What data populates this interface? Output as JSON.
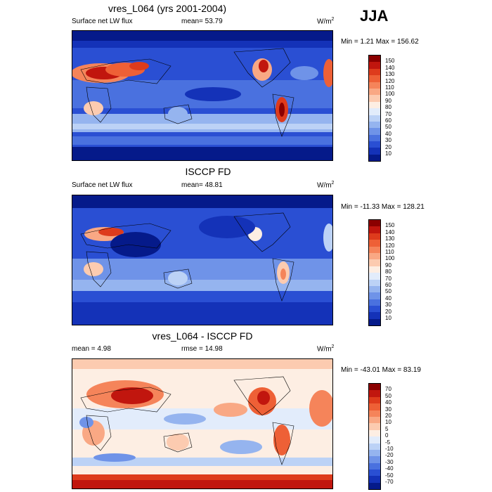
{
  "season": "JJA",
  "panels": [
    {
      "title": "vres_L064 (yrs 2001-2004)",
      "left_label": "Surface net LW flux",
      "mean_label": "mean=  53.79",
      "right_label_base": "W/m",
      "right_label_sup": "2",
      "minmax": "Min =   1.21 Max = 156.62",
      "colorbar": {
        "levels": [
          "150",
          "140",
          "130",
          "120",
          "110",
          "100",
          "90",
          "80",
          "70",
          "60",
          "50",
          "40",
          "30",
          "20",
          "10"
        ],
        "colors": [
          "#8b0000",
          "#c1160e",
          "#de3b1c",
          "#ee6036",
          "#f5845a",
          "#f9a884",
          "#fccbb0",
          "#fdeee3",
          "#e2ecfb",
          "#bcd2f6",
          "#95b4ef",
          "#6f93e8",
          "#4a71df",
          "#2a4fd3",
          "#1432b8",
          "#051a8a"
        ]
      }
    },
    {
      "title": "ISCCP FD",
      "left_label": "Surface net LW flux",
      "mean_label": "mean=  48.81",
      "right_label_base": "W/m",
      "right_label_sup": "2",
      "minmax": "Min = -11.33 Max = 128.21",
      "colorbar": {
        "levels": [
          "150",
          "140",
          "130",
          "120",
          "110",
          "100",
          "90",
          "80",
          "70",
          "60",
          "50",
          "40",
          "30",
          "20",
          "10"
        ],
        "colors": [
          "#8b0000",
          "#c1160e",
          "#de3b1c",
          "#ee6036",
          "#f5845a",
          "#f9a884",
          "#fccbb0",
          "#fdeee3",
          "#e2ecfb",
          "#bcd2f6",
          "#95b4ef",
          "#6f93e8",
          "#4a71df",
          "#2a4fd3",
          "#1432b8",
          "#051a8a"
        ]
      }
    },
    {
      "title": "vres_L064 - ISCCP FD",
      "left_label": "mean =   4.98",
      "mean_label": "rmse =  14.98",
      "right_label_base": "W/m",
      "right_label_sup": "2",
      "minmax": "Min = -43.01 Max =  83.19",
      "colorbar": {
        "levels": [
          "70",
          "50",
          "40",
          "30",
          "20",
          "10",
          "5",
          "0",
          "-5",
          "-10",
          "-20",
          "-30",
          "-40",
          "-50",
          "-70"
        ],
        "colors": [
          "#8b0000",
          "#c1160e",
          "#de3b1c",
          "#ee6036",
          "#f5845a",
          "#f9a884",
          "#fccbb0",
          "#fdeee3",
          "#e2ecfb",
          "#bcd2f6",
          "#95b4ef",
          "#6f93e8",
          "#4a71df",
          "#2a4fd3",
          "#1432b8",
          "#051a8a"
        ]
      }
    }
  ],
  "chart_data": [
    {
      "type": "heatmap",
      "title": "vres_L064 (yrs 2001-2004)",
      "variable": "Surface net LW flux",
      "mean": 53.79,
      "min": 1.21,
      "max": 156.62,
      "units": "W/m2",
      "levels": [
        10,
        20,
        30,
        40,
        50,
        60,
        70,
        80,
        90,
        100,
        110,
        120,
        130,
        140,
        150
      ]
    },
    {
      "type": "heatmap",
      "title": "ISCCP FD",
      "variable": "Surface net LW flux",
      "mean": 48.81,
      "min": -11.33,
      "max": 128.21,
      "units": "W/m2",
      "levels": [
        10,
        20,
        30,
        40,
        50,
        60,
        70,
        80,
        90,
        100,
        110,
        120,
        130,
        140,
        150
      ]
    },
    {
      "type": "heatmap",
      "title": "vres_L064 - ISCCP FD",
      "mean": 4.98,
      "rmse": 14.98,
      "min": -43.01,
      "max": 83.19,
      "units": "W/m2",
      "levels": [
        -70,
        -50,
        -40,
        -30,
        -20,
        -10,
        -5,
        0,
        5,
        10,
        20,
        30,
        40,
        50,
        70
      ]
    }
  ]
}
